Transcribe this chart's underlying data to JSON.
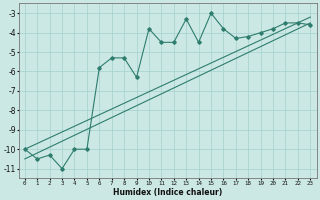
{
  "x_data": [
    0,
    1,
    2,
    3,
    4,
    5,
    6,
    7,
    8,
    9,
    10,
    11,
    12,
    13,
    14,
    15,
    16,
    17,
    18,
    19,
    20,
    21,
    22,
    23
  ],
  "y_data": [
    -10.0,
    -10.5,
    -10.3,
    -11.0,
    -10.0,
    -10.0,
    -5.8,
    -5.3,
    -5.3,
    -6.3,
    -3.8,
    -4.5,
    -4.5,
    -3.3,
    -4.5,
    -3.0,
    -3.8,
    -4.3,
    -4.2,
    -4.0,
    -3.8,
    -3.5,
    -3.5,
    -3.6
  ],
  "trend1_x": [
    0,
    23
  ],
  "trend1_y": [
    -10.5,
    -3.5
  ],
  "trend2_x": [
    0,
    23
  ],
  "trend2_y": [
    -10.0,
    -3.2
  ],
  "line_color": "#2e7d6e",
  "bg_color": "#cce8e4",
  "grid_color": "#aad4d0",
  "xlabel": "Humidex (Indice chaleur)",
  "ylim": [
    -11.5,
    -2.5
  ],
  "xlim": [
    -0.5,
    23.5
  ],
  "yticks": [
    -3,
    -4,
    -5,
    -6,
    -7,
    -8,
    -9,
    -10,
    -11
  ],
  "xticks": [
    0,
    1,
    2,
    3,
    4,
    5,
    6,
    7,
    8,
    9,
    10,
    11,
    12,
    13,
    14,
    15,
    16,
    17,
    18,
    19,
    20,
    21,
    22,
    23
  ]
}
